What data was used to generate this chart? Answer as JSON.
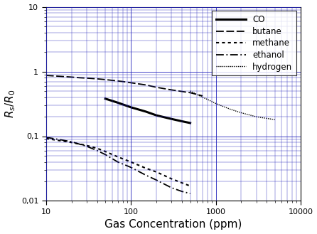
{
  "xlabel": "Gas Concentration (ppm)",
  "ylabel": "$R_s/R_0$",
  "xlim": [
    10,
    10000
  ],
  "ylim": [
    0.01,
    10
  ],
  "background_color": "#ffffff",
  "grid_color": "#2222bb",
  "line_color": "#000000",
  "figsize": [
    4.46,
    3.29
  ],
  "dpi": 100,
  "co": {
    "x": [
      50,
      70,
      100,
      150,
      200,
      300,
      400,
      500
    ],
    "y": [
      0.38,
      0.33,
      0.28,
      0.24,
      0.21,
      0.185,
      0.17,
      0.16
    ],
    "linestyle": "solid",
    "linewidth": 2.2
  },
  "butane": {
    "x": [
      10,
      15,
      20,
      25,
      30,
      40,
      50,
      60,
      80,
      100,
      150,
      200,
      300,
      500,
      700
    ],
    "y": [
      0.87,
      0.84,
      0.82,
      0.8,
      0.79,
      0.77,
      0.75,
      0.73,
      0.7,
      0.67,
      0.62,
      0.57,
      0.52,
      0.47,
      0.42
    ],
    "linestyle": "dashed",
    "linewidth": 1.3
  },
  "methane": {
    "x": [
      10,
      15,
      20,
      30,
      40,
      50,
      70,
      100,
      150,
      200,
      300,
      400,
      500
    ],
    "y": [
      0.092,
      0.085,
      0.08,
      0.072,
      0.065,
      0.058,
      0.048,
      0.04,
      0.032,
      0.028,
      0.022,
      0.019,
      0.017
    ],
    "linestyle": "dotted",
    "linewidth": 1.5
  },
  "ethanol": {
    "x": [
      10,
      15,
      20,
      30,
      40,
      50,
      70,
      100,
      150,
      200,
      300,
      400,
      500
    ],
    "y": [
      0.096,
      0.088,
      0.082,
      0.07,
      0.06,
      0.052,
      0.04,
      0.033,
      0.025,
      0.021,
      0.016,
      0.014,
      0.013
    ],
    "linestyle": "dashdot",
    "linewidth": 1.3
  },
  "hydrogen": {
    "x": [
      500,
      600,
      700,
      800,
      1000,
      1500,
      2000,
      3000,
      5000
    ],
    "y": [
      0.5,
      0.44,
      0.4,
      0.37,
      0.32,
      0.26,
      0.23,
      0.2,
      0.18
    ],
    "linestyle": "densely_dotted",
    "linewidth": 1.0
  },
  "xticks": [
    10,
    100,
    1000,
    10000
  ],
  "xtick_labels": [
    "10",
    "100",
    "1000",
    "10000"
  ],
  "yticks": [
    0.01,
    0.1,
    1,
    10
  ],
  "ytick_labels": [
    "0,01",
    "0,1",
    "1",
    "10"
  ]
}
